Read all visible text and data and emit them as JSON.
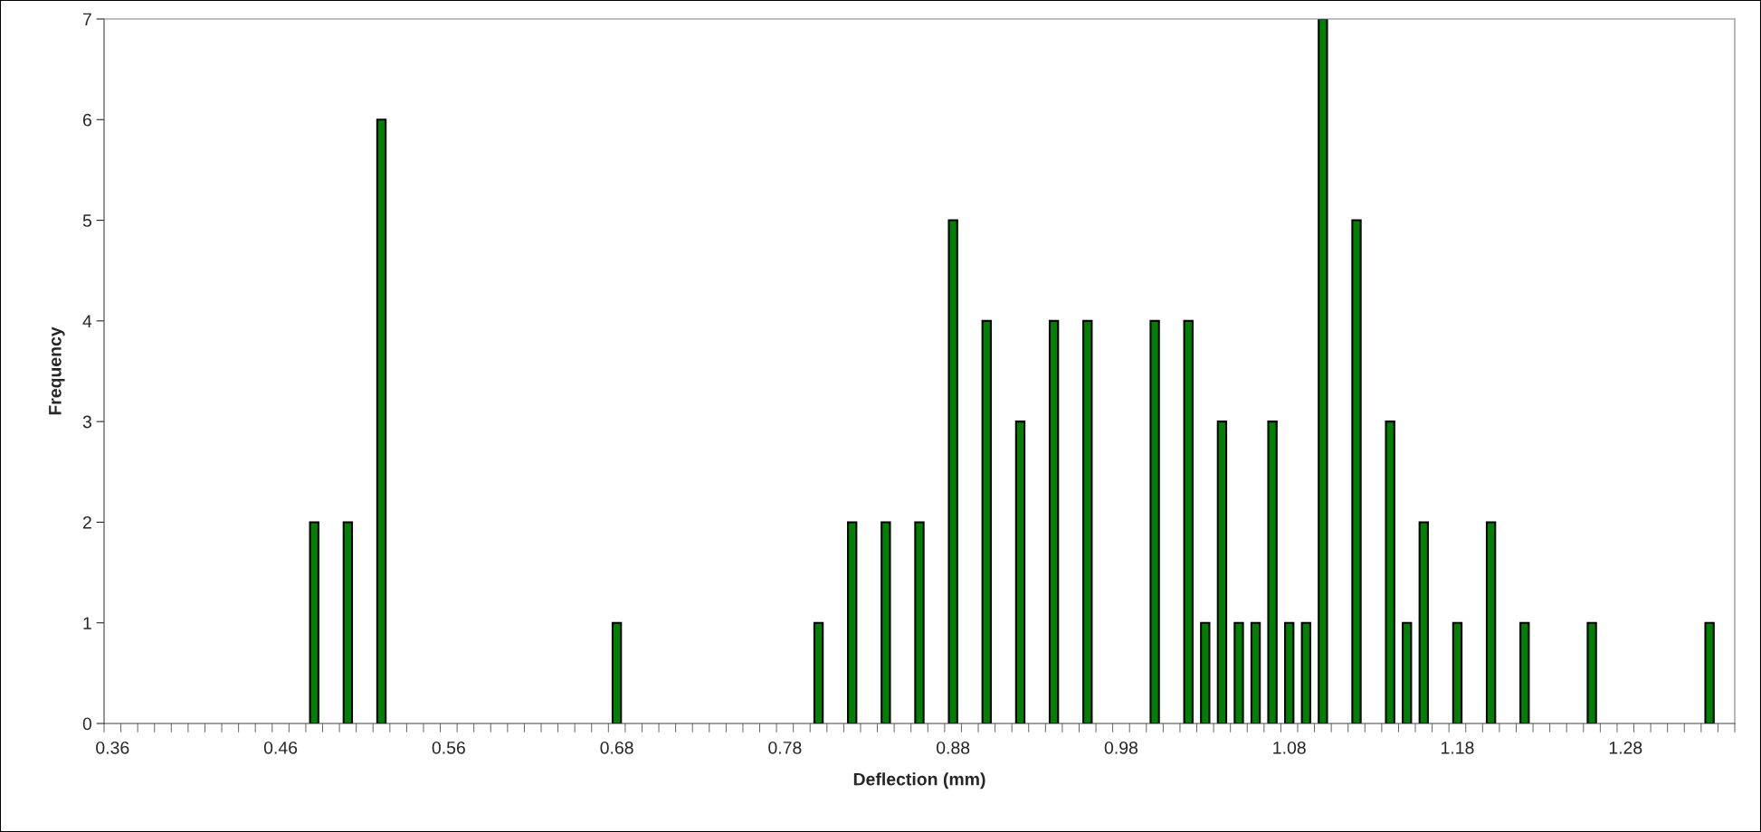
{
  "chart_data": {
    "type": "bar",
    "xlabel": "Deflection (mm)",
    "ylabel": "Frequency",
    "categories": [
      "0.36",
      null,
      null,
      null,
      null,
      null,
      null,
      null,
      null,
      null,
      "0.46",
      null,
      null,
      null,
      null,
      null,
      null,
      null,
      null,
      null,
      "0.56",
      null,
      null,
      null,
      null,
      null,
      null,
      null,
      null,
      null,
      "0.68",
      null,
      null,
      null,
      null,
      null,
      null,
      null,
      null,
      null,
      "0.78",
      null,
      null,
      null,
      null,
      null,
      null,
      null,
      null,
      null,
      "0.88",
      null,
      null,
      null,
      null,
      null,
      null,
      null,
      null,
      null,
      "0.98",
      null,
      null,
      null,
      null,
      null,
      null,
      null,
      null,
      null,
      "1.08",
      null,
      null,
      null,
      null,
      null,
      null,
      null,
      null,
      null,
      "1.18",
      null,
      null,
      null,
      null,
      null,
      null,
      null,
      null,
      null,
      "1.28",
      null,
      null,
      null,
      null,
      null,
      null
    ],
    "values": [
      0,
      0,
      0,
      0,
      0,
      0,
      0,
      0,
      0,
      0,
      0,
      0,
      2,
      0,
      2,
      0,
      6,
      0,
      0,
      0,
      0,
      0,
      0,
      0,
      0,
      0,
      0,
      0,
      0,
      0,
      1,
      0,
      0,
      0,
      0,
      0,
      0,
      0,
      0,
      0,
      0,
      0,
      1,
      0,
      2,
      0,
      2,
      0,
      2,
      0,
      5,
      0,
      4,
      0,
      3,
      0,
      4,
      0,
      4,
      0,
      0,
      0,
      4,
      0,
      4,
      1,
      3,
      1,
      1,
      3,
      1,
      1,
      7,
      0,
      5,
      0,
      3,
      1,
      2,
      0,
      1,
      0,
      2,
      0,
      1,
      0,
      0,
      0,
      1,
      0,
      0,
      0,
      0,
      0,
      0,
      1,
      0
    ],
    "color": "#008000",
    "ylim": [
      0,
      7
    ],
    "yticks": [
      0,
      1,
      2,
      3,
      4,
      5,
      6,
      7
    ],
    "grid": false,
    "legend": false
  }
}
